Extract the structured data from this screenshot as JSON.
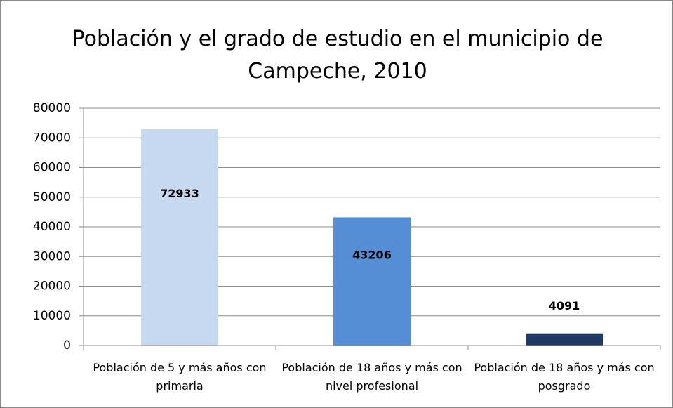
{
  "chart_data": {
    "type": "bar",
    "title": "Población y el grado de estudio en el municipio de Campeche, 2010",
    "categories": [
      "Población de 5 y más años con primaria",
      "Población de 18 años y más con nivel profesional",
      "Población de 18 años y más con posgrado"
    ],
    "values": [
      72933,
      43206,
      4091
    ],
    "colors": [
      "#c6d9f1",
      "#558ed5",
      "#1f3864"
    ],
    "ylim": [
      0,
      80000
    ],
    "yticks": [
      0,
      10000,
      20000,
      30000,
      40000,
      50000,
      60000,
      70000,
      80000
    ],
    "grid": true
  }
}
